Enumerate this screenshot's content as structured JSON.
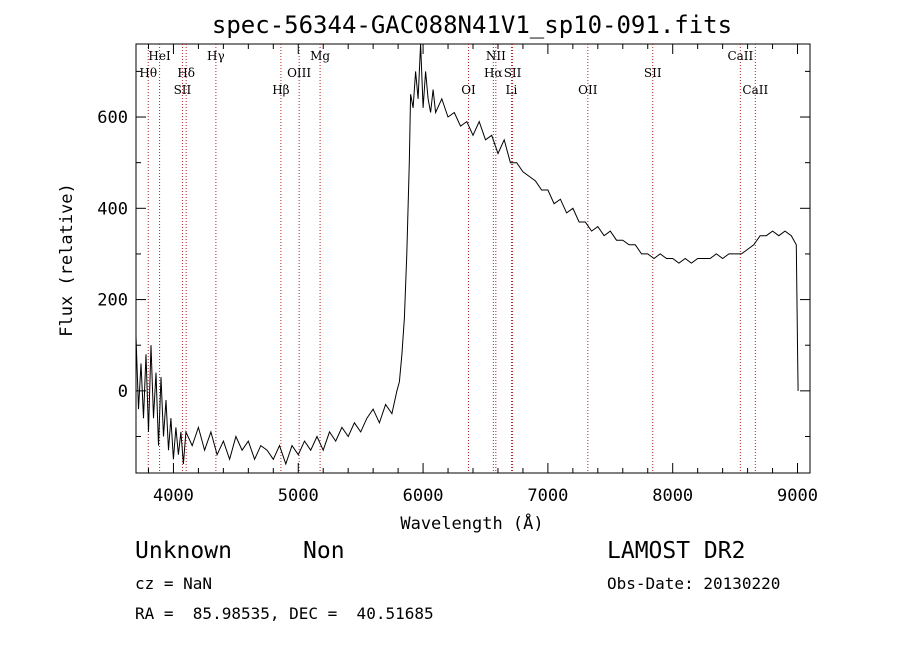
{
  "chart_data": {
    "type": "line",
    "title": "spec-56344-GAC088N41V1_sp10-091.fits",
    "xlabel": "Wavelength (Å)",
    "ylabel": "Flux (relative)",
    "xlim": [
      3700,
      9100
    ],
    "ylim": [
      -180,
      760
    ],
    "x_ticks": [
      4000,
      5000,
      6000,
      7000,
      8000,
      9000
    ],
    "y_ticks": [
      0,
      200,
      400,
      600
    ],
    "grid": false,
    "series": [
      {
        "points": [
          [
            3700,
            120
          ],
          [
            3720,
            -40
          ],
          [
            3740,
            60
          ],
          [
            3760,
            -60
          ],
          [
            3780,
            80
          ],
          [
            3800,
            -90
          ],
          [
            3820,
            100
          ],
          [
            3840,
            -60
          ],
          [
            3860,
            40
          ],
          [
            3880,
            -120
          ],
          [
            3900,
            30
          ],
          [
            3920,
            -100
          ],
          [
            3940,
            -20
          ],
          [
            3960,
            -130
          ],
          [
            3980,
            -60
          ],
          [
            4000,
            -150
          ],
          [
            4020,
            -80
          ],
          [
            4040,
            -140
          ],
          [
            4060,
            -90
          ],
          [
            4080,
            -160
          ],
          [
            4100,
            -90
          ],
          [
            4150,
            -120
          ],
          [
            4200,
            -80
          ],
          [
            4250,
            -130
          ],
          [
            4300,
            -90
          ],
          [
            4350,
            -140
          ],
          [
            4400,
            -110
          ],
          [
            4450,
            -150
          ],
          [
            4500,
            -100
          ],
          [
            4550,
            -130
          ],
          [
            4600,
            -110
          ],
          [
            4650,
            -150
          ],
          [
            4700,
            -120
          ],
          [
            4750,
            -130
          ],
          [
            4800,
            -150
          ],
          [
            4850,
            -120
          ],
          [
            4900,
            -160
          ],
          [
            4950,
            -120
          ],
          [
            5000,
            -140
          ],
          [
            5050,
            -110
          ],
          [
            5100,
            -130
          ],
          [
            5150,
            -100
          ],
          [
            5200,
            -130
          ],
          [
            5250,
            -90
          ],
          [
            5300,
            -110
          ],
          [
            5350,
            -80
          ],
          [
            5400,
            -100
          ],
          [
            5450,
            -70
          ],
          [
            5500,
            -90
          ],
          [
            5550,
            -60
          ],
          [
            5600,
            -40
          ],
          [
            5650,
            -70
          ],
          [
            5700,
            -30
          ],
          [
            5750,
            -50
          ],
          [
            5790,
            0
          ],
          [
            5810,
            20
          ],
          [
            5830,
            80
          ],
          [
            5850,
            160
          ],
          [
            5870,
            300
          ],
          [
            5890,
            500
          ],
          [
            5900,
            650
          ],
          [
            5920,
            620
          ],
          [
            5940,
            700
          ],
          [
            5960,
            640
          ],
          [
            5980,
            760
          ],
          [
            6000,
            620
          ],
          [
            6020,
            700
          ],
          [
            6040,
            640
          ],
          [
            6060,
            610
          ],
          [
            6080,
            660
          ],
          [
            6100,
            610
          ],
          [
            6150,
            640
          ],
          [
            6200,
            600
          ],
          [
            6250,
            610
          ],
          [
            6300,
            580
          ],
          [
            6350,
            590
          ],
          [
            6400,
            560
          ],
          [
            6450,
            590
          ],
          [
            6500,
            550
          ],
          [
            6550,
            560
          ],
          [
            6600,
            520
          ],
          [
            6650,
            550
          ],
          [
            6700,
            500
          ],
          [
            6750,
            500
          ],
          [
            6800,
            480
          ],
          [
            6850,
            470
          ],
          [
            6900,
            460
          ],
          [
            6950,
            440
          ],
          [
            7000,
            440
          ],
          [
            7050,
            410
          ],
          [
            7100,
            420
          ],
          [
            7150,
            390
          ],
          [
            7200,
            400
          ],
          [
            7250,
            370
          ],
          [
            7300,
            370
          ],
          [
            7350,
            350
          ],
          [
            7400,
            360
          ],
          [
            7450,
            340
          ],
          [
            7500,
            350
          ],
          [
            7550,
            330
          ],
          [
            7600,
            330
          ],
          [
            7650,
            320
          ],
          [
            7700,
            320
          ],
          [
            7750,
            300
          ],
          [
            7800,
            300
          ],
          [
            7850,
            290
          ],
          [
            7900,
            300
          ],
          [
            7950,
            290
          ],
          [
            8000,
            290
          ],
          [
            8050,
            280
          ],
          [
            8100,
            290
          ],
          [
            8150,
            280
          ],
          [
            8200,
            290
          ],
          [
            8250,
            290
          ],
          [
            8300,
            290
          ],
          [
            8350,
            300
          ],
          [
            8400,
            290
          ],
          [
            8450,
            300
          ],
          [
            8500,
            300
          ],
          [
            8550,
            300
          ],
          [
            8600,
            310
          ],
          [
            8650,
            320
          ],
          [
            8700,
            340
          ],
          [
            8750,
            340
          ],
          [
            8800,
            350
          ],
          [
            8850,
            340
          ],
          [
            8900,
            350
          ],
          [
            8950,
            340
          ],
          [
            8990,
            320
          ],
          [
            9000,
            100
          ],
          [
            9005,
            0
          ]
        ]
      }
    ],
    "lines_top": [
      {
        "label": "HeI",
        "x": 3889,
        "row": 0
      },
      {
        "label": "Hγ",
        "x": 4340,
        "row": 0
      },
      {
        "label": "Mg",
        "x": 5175,
        "row": 0
      },
      {
        "label": "NII",
        "x": 6583,
        "row": 0
      },
      {
        "label": "CaII",
        "x": 8542,
        "row": 0
      },
      {
        "label": "Hθ",
        "x": 3798,
        "row": 1
      },
      {
        "label": "Hδ",
        "x": 4102,
        "row": 1
      },
      {
        "label": "OIII",
        "x": 5007,
        "row": 1
      },
      {
        "label": "Hα",
        "x": 6563,
        "row": 1
      },
      {
        "label": "SII",
        "x": 6717,
        "row": 1
      },
      {
        "label": "SII",
        "x": 4072,
        "row": 2
      },
      {
        "label": "Hβ",
        "x": 4861,
        "row": 2
      },
      {
        "label": "OI",
        "x": 6364,
        "row": 2
      },
      {
        "label": "Li",
        "x": 6708,
        "row": 2
      },
      {
        "label": "OII",
        "x": 7320,
        "row": 2
      },
      {
        "label": "SII",
        "x": 7840,
        "row": 1
      },
      {
        "label": "CaII",
        "x": 8662,
        "row": 2
      }
    ]
  },
  "info": {
    "class": "Unknown",
    "subclass": "Non",
    "survey": "LAMOST DR2",
    "cz": "cz = NaN",
    "obs_date": "Obs-Date: 20130220",
    "radec": "RA =  85.98535, DEC =  40.51685"
  },
  "colors": {
    "line_marker": "#b22222",
    "spectrum": "#000000"
  }
}
